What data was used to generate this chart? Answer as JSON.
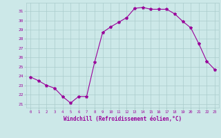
{
  "x": [
    0,
    1,
    2,
    3,
    4,
    5,
    6,
    7,
    8,
    9,
    10,
    11,
    12,
    13,
    14,
    15,
    16,
    17,
    18,
    19,
    20,
    21,
    22,
    23
  ],
  "y": [
    23.9,
    23.5,
    23.0,
    22.7,
    21.8,
    21.1,
    21.8,
    21.8,
    25.5,
    28.7,
    29.3,
    29.8,
    30.3,
    31.3,
    31.4,
    31.2,
    31.2,
    31.2,
    30.7,
    29.9,
    29.2,
    27.5,
    25.6,
    24.7
  ],
  "line_color": "#990099",
  "marker": "*",
  "marker_size": 3,
  "bg_color": "#cce8e8",
  "grid_color": "#aacccc",
  "xlabel": "Windchill (Refroidissement éolien,°C)",
  "xlabel_color": "#990099",
  "tick_color": "#990099",
  "ylabel_ticks": [
    21,
    22,
    23,
    24,
    25,
    26,
    27,
    28,
    29,
    30,
    31
  ],
  "ylim": [
    20.6,
    31.9
  ],
  "xlim": [
    -0.5,
    23.5
  ],
  "xticks": [
    0,
    1,
    2,
    3,
    4,
    5,
    6,
    7,
    8,
    9,
    10,
    11,
    12,
    13,
    14,
    15,
    16,
    17,
    18,
    19,
    20,
    21,
    22,
    23
  ],
  "figsize": [
    3.2,
    2.0
  ],
  "dpi": 100
}
